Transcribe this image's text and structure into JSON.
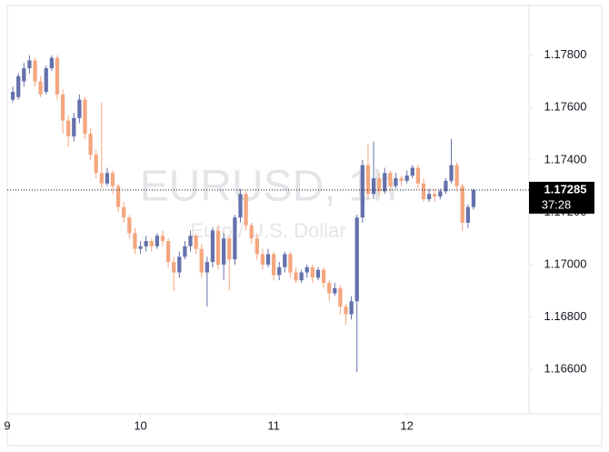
{
  "chart_data": {
    "type": "candlestick",
    "watermark": "EURUSD, 1h",
    "watermark_subtitle": "Euro / U.S. Dollar",
    "up_color": "#6571ab",
    "down_color": "#f4a67f",
    "x": [
      1,
      2,
      3,
      4,
      5,
      6,
      7,
      8,
      9,
      10,
      11,
      12,
      13,
      14,
      15,
      16,
      17,
      18,
      19,
      20,
      21,
      22,
      23,
      24,
      25,
      26,
      27,
      28,
      29,
      30,
      31,
      32,
      33,
      34,
      35,
      36,
      37,
      38,
      39,
      40,
      41,
      42,
      43,
      44,
      45,
      46,
      47,
      48,
      49,
      50,
      51,
      52,
      53,
      54,
      55,
      56,
      57,
      58,
      59,
      60,
      61,
      62,
      63,
      64,
      65,
      66,
      67,
      68,
      69,
      70,
      71,
      72,
      73,
      74,
      75,
      76,
      77,
      78,
      79,
      80,
      81,
      82,
      83,
      84
    ],
    "open": [
      1.1763,
      1.1764,
      1.177,
      1.1775,
      1.1778,
      1.177,
      1.1766,
      1.1775,
      1.1779,
      1.1765,
      1.1755,
      1.1749,
      1.1756,
      1.1763,
      1.175,
      1.1742,
      1.1735,
      1.1731,
      1.1735,
      1.173,
      1.1722,
      1.1718,
      1.1712,
      1.1706,
      1.1707,
      1.1709,
      1.1707,
      1.1711,
      1.1709,
      1.1701,
      1.1697,
      1.1703,
      1.1707,
      1.1711,
      1.1706,
      1.1697,
      1.1701,
      1.1713,
      1.17,
      1.171,
      1.1702,
      1.1718,
      1.1727,
      1.1715,
      1.171,
      1.1704,
      1.17,
      1.1704,
      1.1696,
      1.1699,
      1.1704,
      1.1697,
      1.1694,
      1.1697,
      1.1699,
      1.1695,
      1.1698,
      1.1693,
      1.1689,
      1.1691,
      1.1684,
      1.1681,
      1.1686,
      1.1718,
      1.1738,
      1.1727,
      1.1733,
      1.1728,
      1.1735,
      1.173,
      1.1733,
      1.1732,
      1.1734,
      1.1737,
      1.1731,
      1.1725,
      1.1727,
      1.1726,
      1.1728,
      1.1732,
      1.1738,
      1.173,
      1.1716,
      1.1722
    ],
    "high": [
      1.1768,
      1.1773,
      1.1777,
      1.178,
      1.1779,
      1.1772,
      1.1776,
      1.178,
      1.178,
      1.1767,
      1.1757,
      1.1758,
      1.1765,
      1.1764,
      1.1752,
      1.1744,
      1.1762,
      1.1737,
      1.1736,
      1.1731,
      1.1724,
      1.1719,
      1.1714,
      1.1709,
      1.1711,
      1.171,
      1.1712,
      1.1713,
      1.171,
      1.1703,
      1.1705,
      1.1709,
      1.1713,
      1.1712,
      1.1708,
      1.1703,
      1.1714,
      1.1715,
      1.1712,
      1.1711,
      1.1719,
      1.1729,
      1.1728,
      1.1716,
      1.1712,
      1.1706,
      1.1706,
      1.1705,
      1.1701,
      1.1705,
      1.1705,
      1.1699,
      1.1698,
      1.17,
      1.17,
      1.1699,
      1.1699,
      1.1694,
      1.1693,
      1.1692,
      1.1685,
      1.1688,
      1.1719,
      1.174,
      1.1746,
      1.1747,
      1.1735,
      1.1737,
      1.1736,
      1.1735,
      1.1734,
      1.1736,
      1.1738,
      1.1738,
      1.1733,
      1.1729,
      1.1729,
      1.1729,
      1.1733,
      1.1748,
      1.1739,
      1.1731,
      1.1723,
      1.1729
    ],
    "low": [
      1.1762,
      1.1763,
      1.1768,
      1.1773,
      1.1768,
      1.1764,
      1.1765,
      1.1774,
      1.1763,
      1.175,
      1.1745,
      1.1747,
      1.1754,
      1.1748,
      1.174,
      1.1733,
      1.1729,
      1.173,
      1.1727,
      1.172,
      1.1716,
      1.171,
      1.1704,
      1.1704,
      1.1705,
      1.1705,
      1.1706,
      1.1707,
      1.1699,
      1.169,
      1.1695,
      1.1702,
      1.1705,
      1.1704,
      1.1695,
      1.1684,
      1.1699,
      1.1698,
      1.1694,
      1.169,
      1.17,
      1.1716,
      1.1713,
      1.1708,
      1.1702,
      1.1698,
      1.1699,
      1.1694,
      1.1694,
      1.1697,
      1.1695,
      1.1693,
      1.1693,
      1.1695,
      1.1693,
      1.1694,
      1.1691,
      1.1686,
      1.1688,
      1.1681,
      1.1677,
      1.1679,
      1.1659,
      1.1716,
      1.1725,
      1.1725,
      1.1726,
      1.1727,
      1.1728,
      1.1729,
      1.173,
      1.1731,
      1.1733,
      1.1729,
      1.1724,
      1.1724,
      1.1724,
      1.1725,
      1.1727,
      1.1731,
      1.1728,
      1.1713,
      1.1714,
      1.1721
    ],
    "close": [
      1.1766,
      1.1772,
      1.1775,
      1.1778,
      1.177,
      1.1765,
      1.1775,
      1.1779,
      1.1765,
      1.1755,
      1.1749,
      1.1756,
      1.1763,
      1.175,
      1.1742,
      1.1735,
      1.1731,
      1.1735,
      1.173,
      1.1722,
      1.1718,
      1.1712,
      1.1706,
      1.1707,
      1.1709,
      1.1707,
      1.1711,
      1.1709,
      1.1701,
      1.1697,
      1.1703,
      1.1707,
      1.1711,
      1.1706,
      1.1697,
      1.1701,
      1.1713,
      1.17,
      1.171,
      1.1702,
      1.1718,
      1.1727,
      1.1715,
      1.171,
      1.1704,
      1.17,
      1.1704,
      1.1696,
      1.1699,
      1.1704,
      1.1697,
      1.1694,
      1.1697,
      1.1699,
      1.1695,
      1.1698,
      1.1693,
      1.1689,
      1.1691,
      1.1684,
      1.1681,
      1.1686,
      1.1718,
      1.1738,
      1.1727,
      1.1733,
      1.1728,
      1.1735,
      1.173,
      1.1733,
      1.1732,
      1.1734,
      1.1737,
      1.1731,
      1.1725,
      1.1727,
      1.1726,
      1.1728,
      1.1732,
      1.1738,
      1.173,
      1.1716,
      1.1722,
      1.17285
    ],
    "current_price": 1.17285,
    "countdown": "37:28",
    "xlim": [
      0,
      94
    ],
    "xticks": [
      {
        "value": 0,
        "label": "9"
      },
      {
        "value": 24,
        "label": "10"
      },
      {
        "value": 48,
        "label": "11"
      },
      {
        "value": 72,
        "label": "12"
      }
    ],
    "ylim": [
      1.1643,
      1.1799
    ],
    "yticks": [
      {
        "value": 1.166,
        "label": "1.16600"
      },
      {
        "value": 1.168,
        "label": "1.16800"
      },
      {
        "value": 1.17,
        "label": "1.17000"
      },
      {
        "value": 1.172,
        "label": "1.17200"
      },
      {
        "value": 1.174,
        "label": "1.17400"
      },
      {
        "value": 1.176,
        "label": "1.17600"
      },
      {
        "value": 1.178,
        "label": "1.17800"
      }
    ],
    "grid": false
  }
}
